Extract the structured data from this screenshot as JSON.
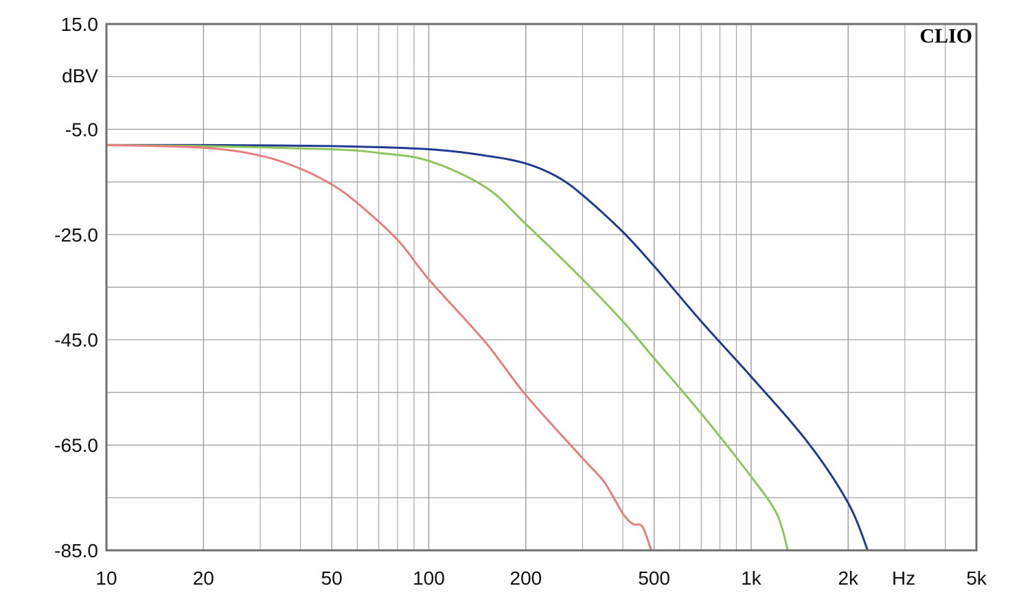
{
  "chart_data": {
    "type": "line",
    "title": "",
    "brand": "CLIO",
    "xlabel": "",
    "ylabel": "",
    "x_unit": "Hz",
    "y_unit": "dBV",
    "x_scale": "log",
    "xlim": [
      10,
      5000
    ],
    "ylim": [
      -85,
      15
    ],
    "grid": true,
    "x_ticks": [
      {
        "value": 10,
        "label": "10"
      },
      {
        "value": 20,
        "label": "20"
      },
      {
        "value": 50,
        "label": "50"
      },
      {
        "value": 100,
        "label": "100"
      },
      {
        "value": 200,
        "label": "200"
      },
      {
        "value": 500,
        "label": "500"
      },
      {
        "value": 1000,
        "label": "1k"
      },
      {
        "value": 2000,
        "label": "2k"
      },
      {
        "value": 5000,
        "label": "5k"
      }
    ],
    "y_ticks": [
      {
        "value": 15,
        "label": "15.0"
      },
      {
        "value": -5,
        "label": "-5.0"
      },
      {
        "value": -25,
        "label": "-25.0"
      },
      {
        "value": -45,
        "label": "-45.0"
      },
      {
        "value": -65,
        "label": "-65.0"
      },
      {
        "value": -85,
        "label": "-85.0"
      }
    ],
    "series": [
      {
        "color": "#1f3a8f",
        "x": [
          10,
          20,
          50,
          100,
          150,
          200,
          250,
          300,
          400,
          500,
          700,
          1000,
          1500,
          2000,
          2300
        ],
        "y": [
          -8,
          -8,
          -8.2,
          -8.8,
          -10,
          -11.5,
          -14,
          -17.5,
          -24.5,
          -31,
          -41.5,
          -52,
          -64.5,
          -76,
          -85
        ]
      },
      {
        "color": "#8cc65a",
        "x": [
          10,
          20,
          50,
          70,
          100,
          150,
          200,
          300,
          400,
          500,
          700,
          1000,
          1200,
          1300
        ],
        "y": [
          -8,
          -8.2,
          -8.8,
          -9.5,
          -11,
          -16,
          -23,
          -33.5,
          -41.5,
          -48.5,
          -59,
          -71,
          -78,
          -85
        ]
      },
      {
        "color": "#e57e7e",
        "x": [
          10,
          20,
          30,
          40,
          50,
          60,
          80,
          100,
          150,
          200,
          300,
          350,
          400,
          430,
          460,
          490
        ],
        "y": [
          -8,
          -8.5,
          -10,
          -12.5,
          -15.5,
          -19,
          -26,
          -33.5,
          -45.5,
          -55.5,
          -67.5,
          -72,
          -78,
          -80,
          -80.5,
          -85
        ]
      }
    ]
  }
}
